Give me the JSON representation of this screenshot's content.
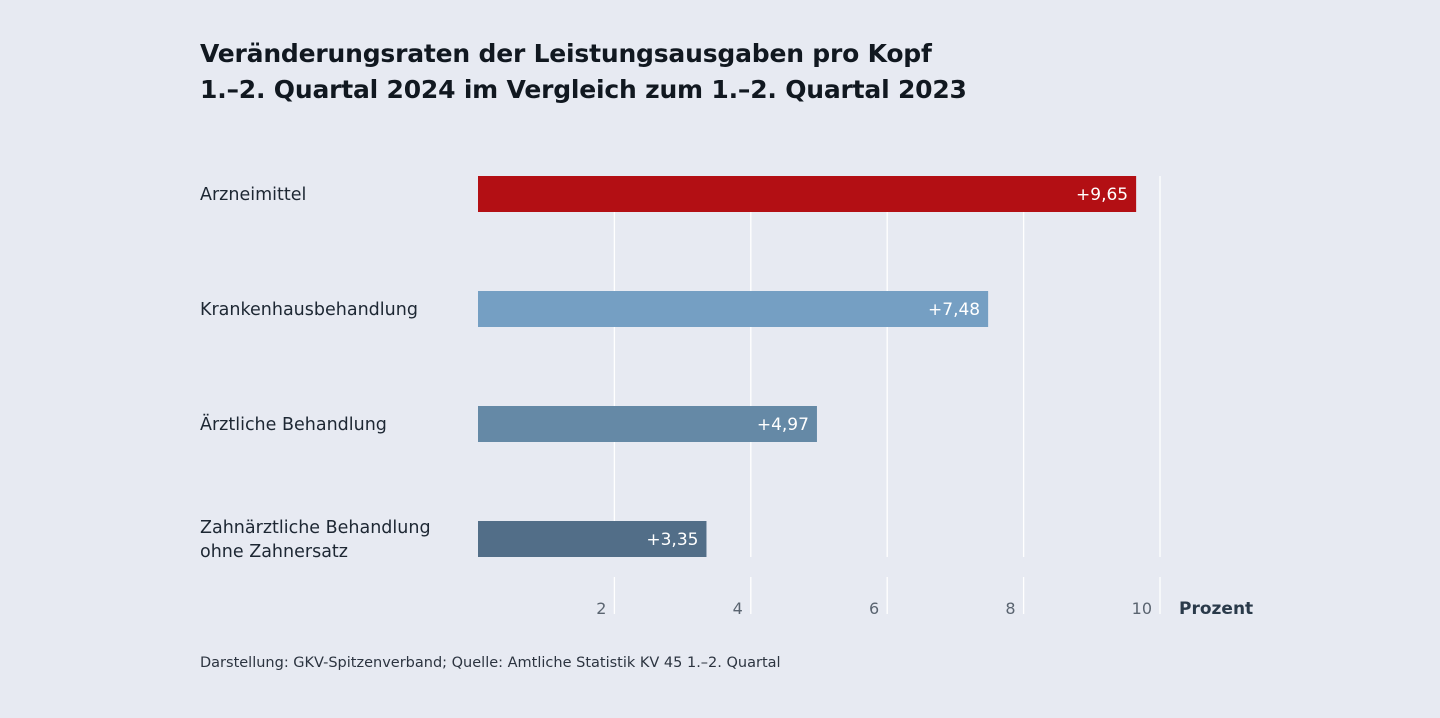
{
  "chart_data": {
    "type": "bar",
    "orientation": "horizontal",
    "title": "Veränderungsraten der Leistungsausgaben pro Kopf",
    "subtitle": "1.–2. Quartal 2024 im Vergleich zum 1.–2. Quartal 2023",
    "categories": [
      [
        "Arzneimittel"
      ],
      [
        "Krankenhausbehandlung"
      ],
      [
        "Ärztliche Behandlung"
      ],
      [
        "Zahnärztliche Behandlung",
        "ohne Zahnersatz"
      ]
    ],
    "values": [
      9.65,
      7.48,
      4.97,
      3.35
    ],
    "value_labels": [
      "+9,65",
      "+7,48",
      "+4,97",
      "+3,35"
    ],
    "bar_colors": [
      "#b30f14",
      "#759fc3",
      "#6589a6",
      "#526e88"
    ],
    "xlim": [
      0,
      10
    ],
    "xticks": [
      2,
      4,
      6,
      8,
      10
    ],
    "xtick_labels": [
      "2",
      "4",
      "6",
      "8",
      "10"
    ],
    "xlabel": "Prozent",
    "grid": true
  },
  "footer": {
    "source": "Darstellung: GKV-Spitzenverband; Quelle: Amtliche Statistik KV 45 1.–2. Quartal"
  }
}
